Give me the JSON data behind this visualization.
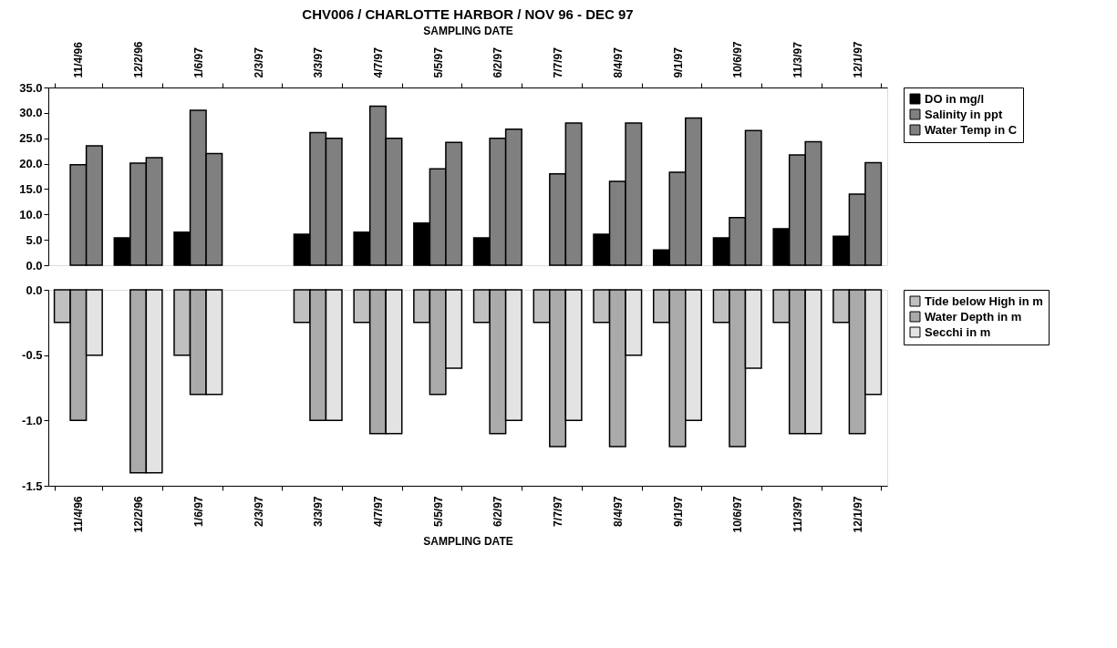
{
  "chart_data": [
    {
      "type": "bar",
      "title": "CHV006 / CHARLOTTE HARBOR / NOV 96 - DEC 97",
      "xlabel": "SAMPLING DATE",
      "categories": [
        "11/4/96",
        "12/2/96",
        "1/6/97",
        "2/3/97",
        "3/3/97",
        "4/7/97",
        "5/5/97",
        "6/2/97",
        "7/7/97",
        "8/4/97",
        "9/1/97",
        "10/6/97",
        "11/3/97",
        "12/1/97"
      ],
      "series": [
        {
          "name": "DO in mg/l",
          "color": "#000000",
          "values": [
            null,
            5.4,
            6.5,
            null,
            6.1,
            6.5,
            8.3,
            5.4,
            null,
            6.1,
            3.0,
            5.4,
            7.2,
            5.7
          ]
        },
        {
          "name": "Salinity in ppt",
          "color": "#808080",
          "values": [
            19.8,
            20.1,
            30.5,
            null,
            26.1,
            31.3,
            19.0,
            25.0,
            18.0,
            16.5,
            18.3,
            9.4,
            21.7,
            14.0
          ]
        },
        {
          "name": "Water Temp in C",
          "color": "#808080",
          "values": [
            23.5,
            21.2,
            22.0,
            null,
            25.0,
            25.0,
            24.2,
            26.8,
            28.0,
            28.0,
            29.0,
            26.5,
            24.3,
            20.2
          ]
        }
      ],
      "ylim": [
        0,
        35
      ],
      "yticks": [
        {
          "value": 0,
          "label": "0.0"
        },
        {
          "value": 5,
          "label": "5.0"
        },
        {
          "value": 10,
          "label": "10.0"
        },
        {
          "value": 15,
          "label": "15.0"
        },
        {
          "value": 20,
          "label": "20.0"
        },
        {
          "value": 25,
          "label": "25.0"
        },
        {
          "value": 30,
          "label": "30.0"
        },
        {
          "value": 35,
          "label": "35.0"
        }
      ],
      "legend": "right",
      "grid": false
    },
    {
      "type": "bar",
      "xlabel": "SAMPLING DATE",
      "categories": [
        "11/4/96",
        "12/2/96",
        "1/6/97",
        "2/3/97",
        "3/3/97",
        "4/7/97",
        "5/5/97",
        "6/2/97",
        "7/7/97",
        "8/4/97",
        "9/1/97",
        "10/6/97",
        "11/3/97",
        "12/1/97"
      ],
      "series": [
        {
          "name": "Tide below High in m",
          "color": "#c0c0c0",
          "values": [
            -0.25,
            null,
            -0.5,
            null,
            -0.25,
            -0.25,
            -0.25,
            -0.25,
            -0.25,
            -0.25,
            -0.25,
            -0.25,
            -0.25,
            -0.25
          ]
        },
        {
          "name": "Water Depth in m",
          "color": "#aaaaaa",
          "values": [
            -1.0,
            -1.4,
            -0.8,
            null,
            -1.0,
            -1.1,
            -0.8,
            -1.1,
            -1.2,
            -1.2,
            -1.2,
            -1.2,
            -1.1,
            -1.1
          ]
        },
        {
          "name": "Secchi in m",
          "color": "#e3e3e3",
          "values": [
            -0.5,
            -1.4,
            -0.8,
            null,
            -1.0,
            -1.1,
            -0.6,
            -1.0,
            -1.0,
            -0.5,
            -1.0,
            -0.6,
            -1.1,
            -0.8
          ]
        }
      ],
      "ylim": [
        -1.5,
        0
      ],
      "yticks": [
        {
          "value": 0,
          "label": "0.0"
        },
        {
          "value": -0.5,
          "label": "-0.5"
        },
        {
          "value": -1.0,
          "label": "-1.0"
        },
        {
          "value": -1.5,
          "label": "-1.5"
        }
      ],
      "legend": "right",
      "grid": false
    }
  ]
}
